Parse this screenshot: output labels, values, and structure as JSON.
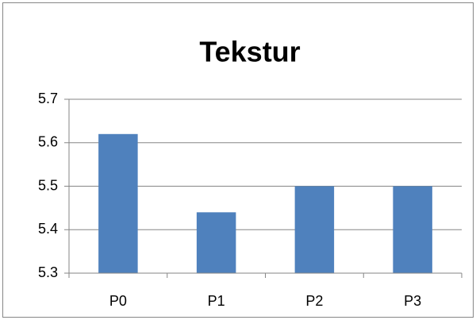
{
  "chart_data": {
    "type": "bar",
    "title": "Tekstur",
    "categories": [
      "P0",
      "P1",
      "P2",
      "P3"
    ],
    "values": [
      5.62,
      5.44,
      5.5,
      5.5
    ],
    "color": "#4f81bd",
    "ylim": [
      5.3,
      5.7
    ],
    "yticks": [
      5.3,
      5.4,
      5.5,
      5.6,
      5.7
    ],
    "grid": true
  }
}
